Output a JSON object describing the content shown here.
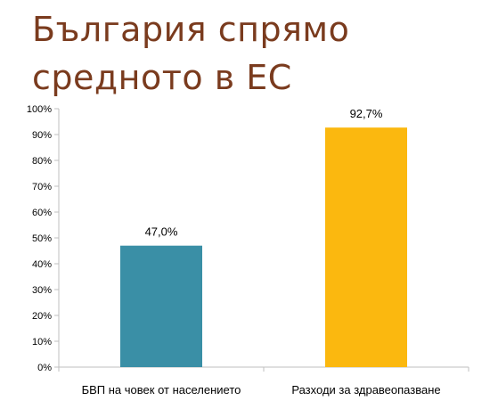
{
  "title": {
    "line1": "България спрямо",
    "line2": "средното в ЕС"
  },
  "colors": {
    "title": "#7a3b1e",
    "axis": "#bfbfbf",
    "text": "#000000"
  },
  "chart_data": {
    "type": "bar",
    "title": "",
    "xlabel": "",
    "ylabel": "",
    "ylim": [
      0,
      100
    ],
    "y_ticks": [
      0,
      10,
      20,
      30,
      40,
      50,
      60,
      70,
      80,
      90,
      100
    ],
    "y_tick_suffix": "%",
    "grid": false,
    "legend": "none",
    "categories": [
      "БВП на човек от населението",
      "Разходи за здравеопазване"
    ],
    "values": [
      47.0,
      92.7
    ],
    "data_labels": [
      "47,0%",
      "92,7%"
    ],
    "bar_colors": [
      "#3a8fa6",
      "#fbb80f"
    ]
  }
}
